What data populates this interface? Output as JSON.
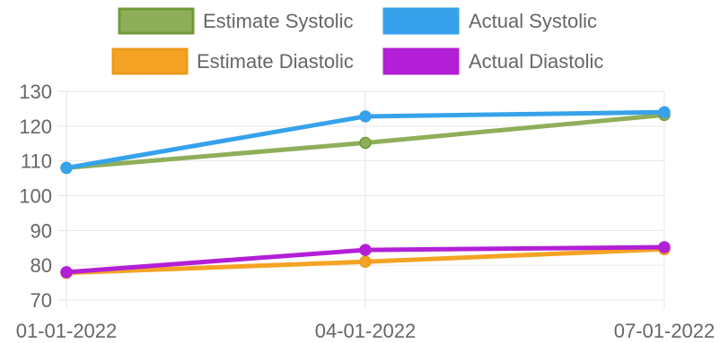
{
  "chart_data": {
    "type": "line",
    "categories": [
      "01-01-2022",
      "04-01-2022",
      "07-01-2022"
    ],
    "series": [
      {
        "name": "Estimate Systolic",
        "values": [
          108,
          115.2,
          123.2
        ],
        "color": "#8fae5a",
        "border_color": "#6f9a3a"
      },
      {
        "name": "Actual Systolic",
        "values": [
          108,
          122.8,
          124
        ],
        "color": "#36a2eb",
        "border_color": "#36a2eb"
      },
      {
        "name": "Estimate Diastolic",
        "values": [
          77.8,
          81,
          84.6
        ],
        "color": "#f4a324",
        "border_color": "#ec9a1c"
      },
      {
        "name": "Actual Diastolic",
        "values": [
          78,
          84.4,
          85.2
        ],
        "color": "#b31fd6",
        "border_color": "#b31fd6"
      }
    ],
    "ylim": [
      70,
      130
    ],
    "yticks": [
      "130",
      "120",
      "110",
      "100",
      "90",
      "80",
      "70"
    ],
    "grid": true,
    "legend_position": "top"
  }
}
